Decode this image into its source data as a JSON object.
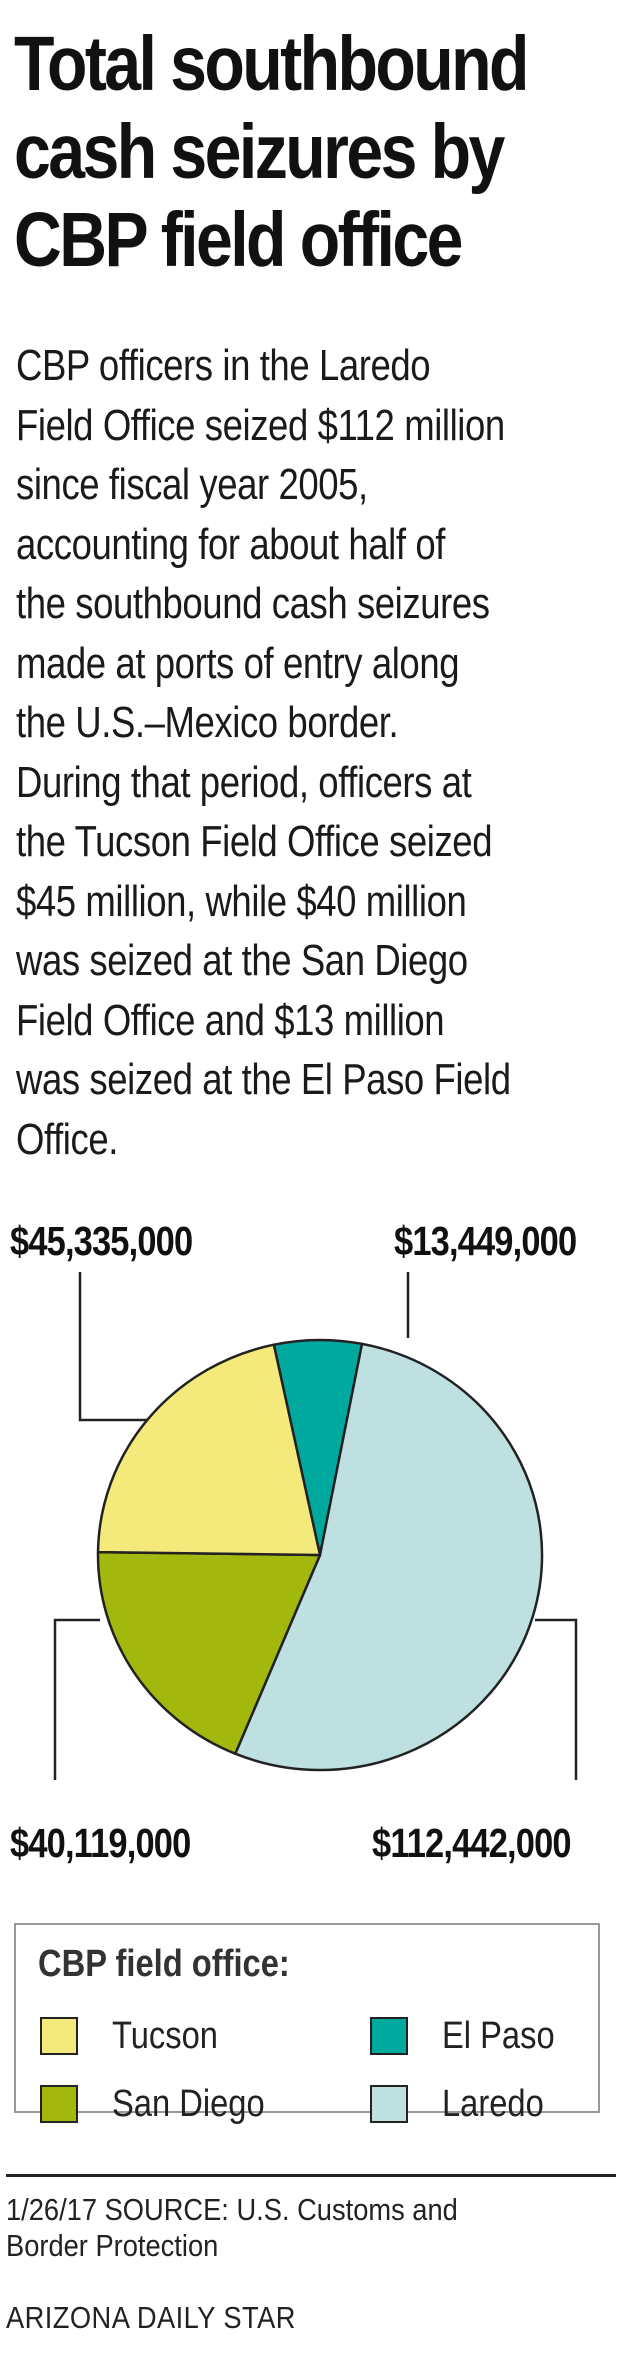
{
  "header": {
    "title_lines": [
      "Total southbound",
      "cash seizures by",
      "CBP field office"
    ],
    "description_lines": [
      "CBP officers in the Laredo",
      "Field Office seized $112 million",
      "since fiscal year 2005,",
      "accounting for about half of",
      "the southbound cash seizures",
      "made at ports of entry along",
      "the U.S.–Mexico border.",
      "During that period, officers at",
      "the Tucson Field Office seized",
      "$45 million, while $40 million",
      "was seized at the San Diego",
      "Field Office and $13 million",
      "was seized at the El Paso Field",
      "Office."
    ]
  },
  "chart_data": {
    "type": "pie",
    "title": "Total southbound cash seizures by CBP field office",
    "slices": [
      {
        "label": "El Paso",
        "value": 13449000,
        "display": "$13,449,000",
        "color": "#00a99d"
      },
      {
        "label": "Laredo",
        "value": 112442000,
        "display": "$112,442,000",
        "color": "#bfe0e0"
      },
      {
        "label": "San Diego",
        "value": 40119000,
        "display": "$40,119,000",
        "color": "#a3b80c"
      },
      {
        "label": "Tucson",
        "value": 45335000,
        "display": "$45,335,000",
        "color": "#f4ea7c"
      }
    ],
    "legend": {
      "title": "CBP field office:",
      "placement": "bottom",
      "entries": [
        {
          "label": "Tucson",
          "color": "#f4ea7c"
        },
        {
          "label": "El Paso",
          "color": "#00a99d"
        },
        {
          "label": "San Diego",
          "color": "#a3b80c"
        },
        {
          "label": "Laredo",
          "color": "#bfe0e0"
        }
      ]
    }
  },
  "footer": {
    "source_lines": [
      "1/26/17   SOURCE: U.S. Customs and",
      "Border Protection"
    ],
    "credit": "ARIZONA DAILY STAR"
  }
}
